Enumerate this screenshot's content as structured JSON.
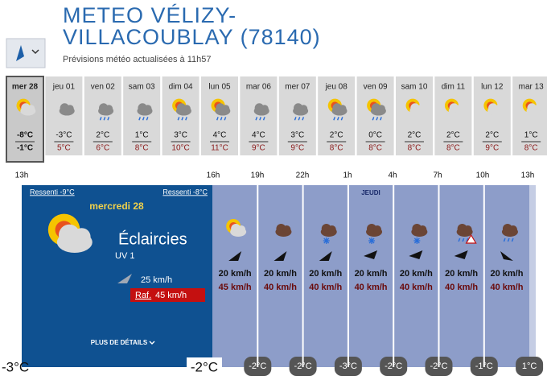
{
  "header": {
    "title_lines": [
      "METEO VÉLIZY-",
      "VILLACOUBLAY (78140)"
    ],
    "subtitle": "Prévisions météo actualisées à 11h57"
  },
  "days": [
    {
      "label": "mer 28",
      "min": "-8°C",
      "max": "-1°C"
    },
    {
      "label": "jeu 01",
      "min": "-3°C",
      "max": "5°C"
    },
    {
      "label": "ven 02",
      "min": "2°C",
      "max": "6°C"
    },
    {
      "label": "sam 03",
      "min": "1°C",
      "max": "8°C"
    },
    {
      "label": "dim 04",
      "min": "3°C",
      "max": "10°C"
    },
    {
      "label": "lun 05",
      "min": "4°C",
      "max": "11°C"
    },
    {
      "label": "mar 06",
      "min": "4°C",
      "max": "9°C"
    },
    {
      "label": "mer 07",
      "min": "3°C",
      "max": "9°C"
    },
    {
      "label": "jeu 08",
      "min": "2°C",
      "max": "8°C"
    },
    {
      "label": "ven 09",
      "min": "0°C",
      "max": "8°C"
    },
    {
      "label": "sam 10",
      "min": "2°C",
      "max": "8°C"
    },
    {
      "label": "dim 11",
      "min": "2°C",
      "max": "8°C"
    },
    {
      "label": "lun 12",
      "min": "2°C",
      "max": "9°C"
    },
    {
      "label": "mar 13",
      "min": "1°C",
      "max": "8°C"
    }
  ],
  "hours": [
    "13h",
    "16h",
    "19h",
    "22h",
    "1h",
    "4h",
    "7h",
    "10h",
    "13h"
  ],
  "current": {
    "felt_left": "Ressenti -9°C",
    "felt_right": "Ressenti -8°C",
    "day": "mercredi 28",
    "condition": "Éclaircies",
    "uv": "UV 1",
    "wind": "25 km/h",
    "gust_prefix": "Raf.",
    "gust": "45 km/h",
    "details": "PLUS DE DÉTAILS",
    "temp_start": "-3°C",
    "temp_end": "-2°C"
  },
  "day_marker": "JEUDI",
  "hourly": [
    {
      "wind": "20 km/h",
      "gust": "45 km/h",
      "temp": "-2°C"
    },
    {
      "wind": "20 km/h",
      "gust": "40 km/h",
      "temp": "-2°C"
    },
    {
      "wind": "20 km/h",
      "gust": "40 km/h",
      "temp": "-3°C"
    },
    {
      "wind": "20 km/h",
      "gust": "40 km/h",
      "temp": "-2°C"
    },
    {
      "wind": "20 km/h",
      "gust": "40 km/h",
      "temp": "-2°C"
    },
    {
      "wind": "20 km/h",
      "gust": "40 km/h",
      "temp": "-1°C"
    },
    {
      "wind": "20 km/h",
      "gust": "40 km/h",
      "temp": "1°C"
    }
  ]
}
